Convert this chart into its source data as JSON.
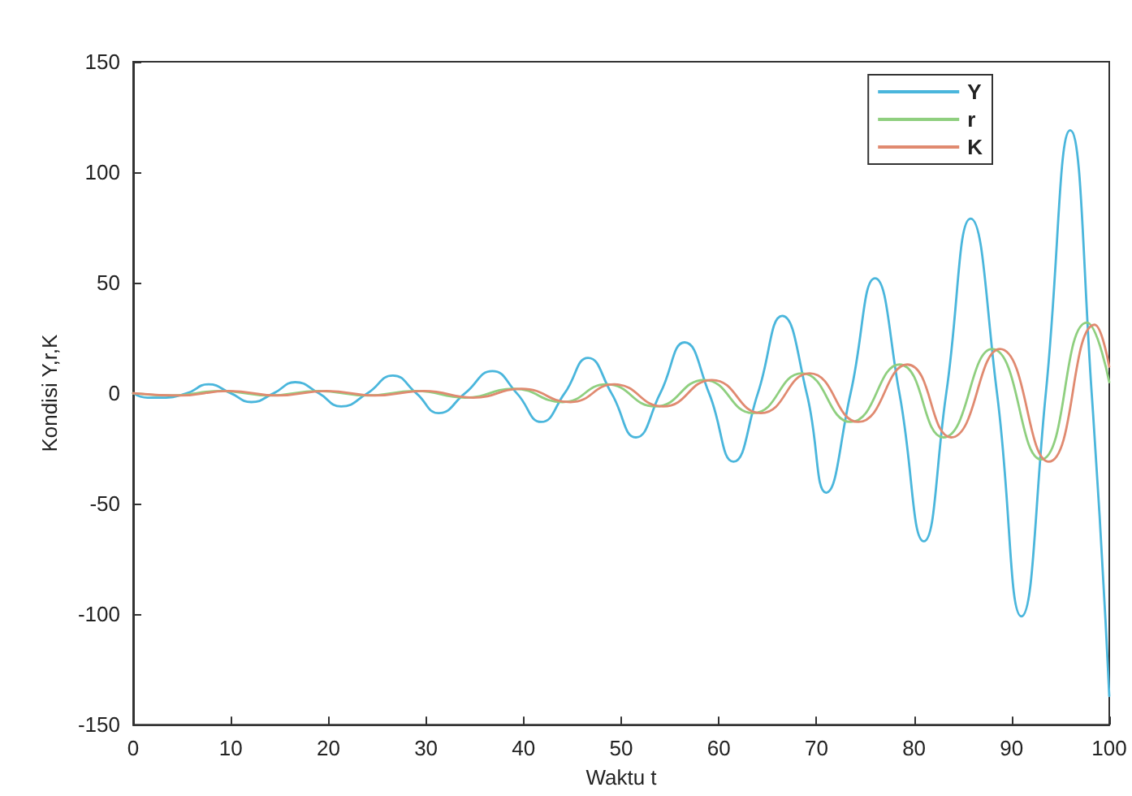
{
  "chart_data": {
    "type": "line",
    "xlabel": "Waktu t",
    "ylabel": "Kondisi Y,r,K",
    "xlim": [
      0,
      100
    ],
    "xticks": [
      0,
      10,
      20,
      30,
      40,
      50,
      60,
      70,
      80,
      90,
      100
    ],
    "ylim": [
      -150,
      150
    ],
    "yticks": [
      -150,
      -100,
      -50,
      0,
      50,
      100,
      150
    ],
    "grid": false,
    "legend": "top right",
    "marker": "none",
    "line_style": "solid",
    "series": [
      {
        "name": "Y",
        "color": "#4ab6dc",
        "x": [
          0,
          1.5,
          3,
          5.5,
          7.7,
          10,
          12.1,
          14.4,
          16.6,
          19,
          21.3,
          24,
          26.6,
          29,
          31.3,
          34,
          36.8,
          39.3,
          41.8,
          44.2,
          46.6,
          49,
          51.5,
          54,
          56.5,
          59,
          61.5,
          64,
          66.5,
          69,
          71,
          73.5,
          76,
          78.5,
          81,
          83.3,
          85.8,
          88.5,
          91,
          93.5,
          96,
          98.2,
          100
        ],
        "values": [
          0,
          -2,
          -2,
          0,
          4,
          0,
          -4,
          0,
          5,
          0,
          -6,
          0,
          8,
          0,
          -9,
          0,
          10,
          0,
          -13,
          0,
          16,
          0,
          -20,
          0,
          23,
          0,
          -31,
          0,
          35,
          0,
          -45,
          0,
          52,
          0,
          -67,
          0,
          79,
          0,
          -101,
          0,
          119,
          0,
          -137
        ]
      },
      {
        "name": "r",
        "color": "#8fcf7f",
        "x": [
          0,
          4,
          9,
          14,
          19,
          24,
          29,
          34,
          39,
          44,
          48.5,
          53.5,
          58.5,
          63.5,
          68.5,
          73.5,
          78.5,
          83,
          88,
          93,
          97.7,
          100
        ],
        "values": [
          0,
          -1,
          1,
          -1,
          1,
          -1,
          1,
          -2,
          2,
          -4,
          4,
          -6,
          6,
          -9,
          9,
          -13,
          13,
          -20,
          20,
          -30,
          32,
          5
        ]
      },
      {
        "name": "K",
        "color": "#e08a70",
        "x": [
          0,
          4.8,
          9.8,
          14.8,
          19.8,
          24.8,
          29.8,
          34.8,
          39.8,
          44.8,
          49.3,
          54.3,
          59.3,
          64.3,
          69.3,
          74.3,
          79.3,
          83.8,
          88.8,
          93.8,
          98.5,
          100
        ],
        "values": [
          0,
          -1,
          1,
          -1,
          1,
          -1,
          1,
          -2,
          2,
          -4,
          4,
          -6,
          6,
          -9,
          9,
          -13,
          13,
          -20,
          20,
          -31,
          31,
          12
        ]
      }
    ]
  }
}
